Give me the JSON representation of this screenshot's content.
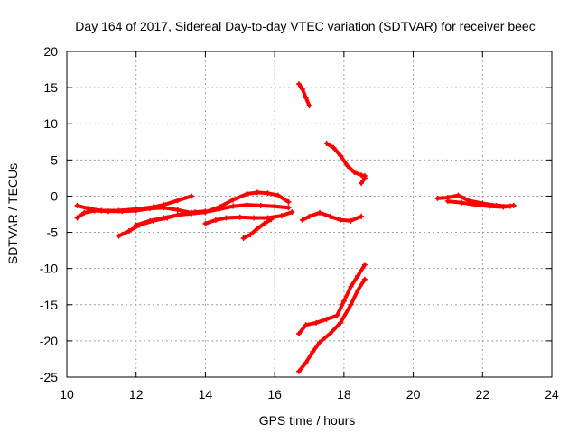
{
  "chart_data": {
    "type": "scatter",
    "title": "Day 164 of 2017, Sidereal Day-to-day VTEC variation (SDTVAR) for receiver beec",
    "xlabel": "GPS time / hours",
    "ylabel": "SDTVAR / TECUs",
    "xlim": [
      10,
      24
    ],
    "ylim": [
      -25,
      20
    ],
    "x_ticks": [
      "10",
      "12",
      "14",
      "16",
      "18",
      "20",
      "22",
      "24"
    ],
    "y_ticks": [
      "20",
      "15",
      "10",
      "5",
      "0",
      "-5",
      "-10",
      "-15",
      "-20",
      "-25"
    ],
    "grid": true,
    "marker": "plus",
    "color": "#ff0000",
    "series": [
      {
        "x": [
          10.3,
          10.6,
          11.0,
          11.5,
          12.0,
          12.5,
          12.8,
          13.2,
          13.6
        ],
        "y": [
          -1.3,
          -1.7,
          -2.0,
          -2.0,
          -1.8,
          -1.5,
          -1.2,
          -0.6,
          0.0
        ]
      },
      {
        "x": [
          10.3,
          10.5,
          10.8,
          11.2,
          11.6,
          12.0,
          12.4,
          12.8,
          13.2,
          13.6,
          14.0,
          14.4,
          14.8,
          15.2
        ],
        "y": [
          -3.0,
          -2.3,
          -2.0,
          -2.1,
          -2.1,
          -2.0,
          -1.7,
          -1.6,
          -1.9,
          -2.3,
          -2.2,
          -1.5,
          -0.5,
          0.3
        ]
      },
      {
        "x": [
          15.2,
          15.5,
          15.8,
          16.1,
          16.4
        ],
        "y": [
          0.3,
          0.5,
          0.4,
          0.1,
          -0.8
        ]
      },
      {
        "x": [
          11.5,
          11.8,
          12.1,
          12.5,
          12.9,
          13.3,
          13.7,
          14.0
        ],
        "y": [
          -5.5,
          -4.8,
          -4.0,
          -3.4,
          -3.0,
          -2.5,
          -2.2,
          -2.1
        ]
      },
      {
        "x": [
          12.0,
          12.4,
          12.8,
          13.2,
          13.6,
          14.0,
          14.4,
          14.8,
          15.2,
          15.6,
          16.0,
          16.4
        ],
        "y": [
          -4.0,
          -3.4,
          -3.0,
          -2.6,
          -2.4,
          -2.2,
          -1.8,
          -1.4,
          -1.2,
          -1.3,
          -1.4,
          -1.6
        ]
      },
      {
        "x": [
          14.0,
          14.3,
          14.6,
          15.0,
          15.4,
          15.8,
          16.2,
          16.5
        ],
        "y": [
          -3.8,
          -3.3,
          -3.0,
          -2.9,
          -3.0,
          -3.0,
          -2.7,
          -2.2
        ]
      },
      {
        "x": [
          15.1,
          15.3,
          15.5,
          15.7,
          15.9
        ],
        "y": [
          -5.8,
          -5.3,
          -4.5,
          -3.8,
          -3.2
        ]
      },
      {
        "x": [
          16.7,
          16.8,
          16.9,
          17.0
        ],
        "y": [
          15.5,
          14.8,
          13.6,
          12.5
        ]
      },
      {
        "x": [
          17.5,
          17.7,
          17.9,
          18.1,
          18.3,
          18.5,
          18.6
        ],
        "y": [
          7.3,
          6.7,
          5.6,
          4.2,
          3.3,
          2.9,
          2.8
        ]
      },
      {
        "x": [
          18.5,
          18.6
        ],
        "y": [
          1.8,
          2.5
        ]
      },
      {
        "x": [
          16.8,
          17.0,
          17.3,
          17.6,
          17.9,
          18.2,
          18.5
        ],
        "y": [
          -3.3,
          -2.8,
          -2.3,
          -2.8,
          -3.3,
          -3.4,
          -2.8
        ]
      },
      {
        "x": [
          16.7,
          16.9,
          17.2,
          17.5,
          17.8,
          18.0,
          18.2,
          18.4,
          18.6
        ],
        "y": [
          -19.0,
          -17.8,
          -17.5,
          -17.0,
          -16.5,
          -14.5,
          -12.5,
          -11.0,
          -9.5
        ]
      },
      {
        "x": [
          16.7,
          16.9,
          17.1,
          17.3,
          17.6,
          17.9,
          18.2,
          18.4,
          18.6
        ],
        "y": [
          -24.2,
          -23.0,
          -21.5,
          -20.2,
          -19.0,
          -17.5,
          -15.0,
          -13.0,
          -11.5
        ]
      },
      {
        "x": [
          20.7,
          21.0,
          21.3,
          21.6,
          22.0,
          22.4,
          22.8
        ],
        "y": [
          -0.3,
          -0.2,
          0.1,
          -0.6,
          -1.0,
          -1.3,
          -1.4
        ]
      },
      {
        "x": [
          21.0,
          21.4,
          21.8,
          22.2,
          22.6,
          22.9
        ],
        "y": [
          -0.7,
          -0.9,
          -1.2,
          -1.4,
          -1.5,
          -1.3
        ]
      }
    ]
  }
}
